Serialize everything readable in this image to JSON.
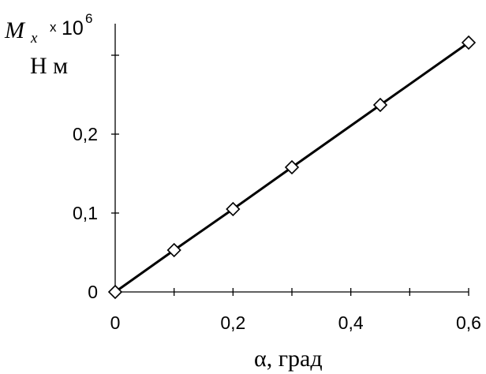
{
  "chart_data": {
    "type": "line",
    "title": "",
    "xlabel": "α, град",
    "ylabel": {
      "symbol": "M",
      "subscript": "x",
      "multiplier": "x",
      "base": "10",
      "exponent": "6",
      "unit": "Н м"
    },
    "xlim": [
      0,
      0.6
    ],
    "ylim": [
      0,
      0.3
    ],
    "x_ticks": [
      0,
      0.1,
      0.2,
      0.3,
      0.4,
      0.5,
      0.6
    ],
    "x_tick_labels": [
      "0",
      "",
      "0,2",
      "",
      "0,4",
      "",
      "0,6"
    ],
    "y_ticks": [
      0,
      0.1,
      0.2,
      0.3
    ],
    "y_tick_labels": [
      "0",
      "0,1",
      "0,2",
      ""
    ],
    "grid": false,
    "series": [
      {
        "marker": "diamond",
        "color": "#000000",
        "x": [
          0,
          0.1,
          0.2,
          0.3,
          0.45,
          0.6
        ],
        "y": [
          0,
          0.053,
          0.105,
          0.158,
          0.237,
          0.316
        ]
      }
    ]
  }
}
